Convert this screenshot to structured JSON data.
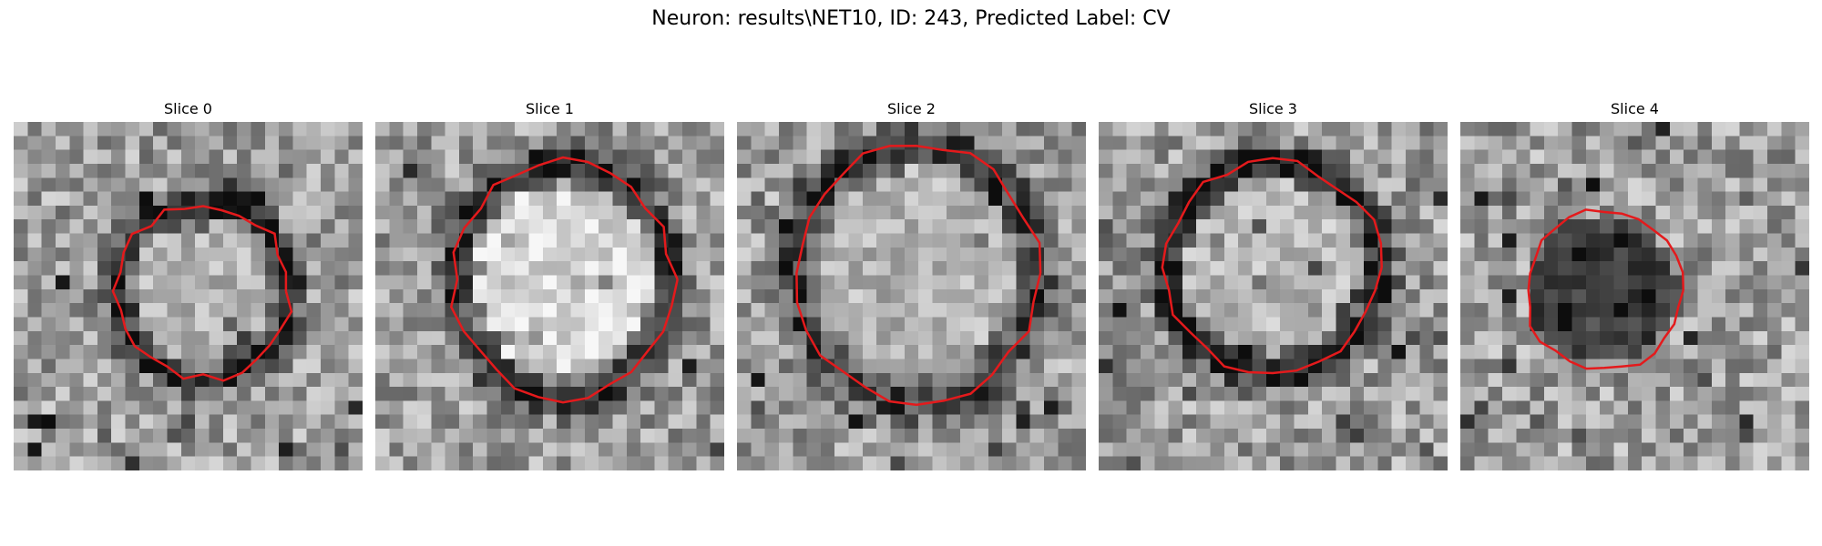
{
  "figure": {
    "title": "Neuron: results\\NET10, ID: 243, Predicted Label: CV",
    "contour_color": "#e41a1c"
  },
  "slices": [
    {
      "title": "Slice 0"
    },
    {
      "title": "Slice 1"
    },
    {
      "title": "Slice 2"
    },
    {
      "title": "Slice 3"
    },
    {
      "title": "Slice 4"
    }
  ]
}
